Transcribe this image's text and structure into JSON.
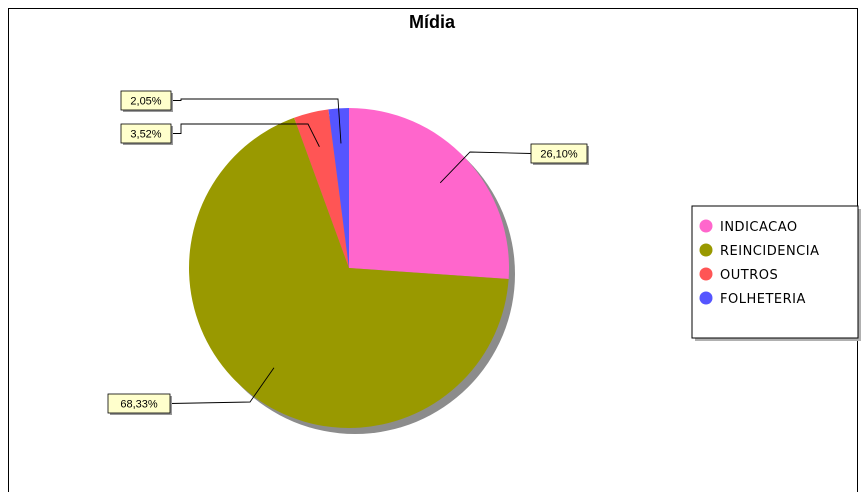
{
  "chart_data": {
    "type": "pie",
    "title": "Mídia",
    "slices": [
      {
        "name": "INDICACAO",
        "value": 26.1,
        "label": "26,10%",
        "color": "#ff66cc"
      },
      {
        "name": "REINCIDENCIA",
        "value": 68.33,
        "label": "68,33%",
        "color": "#999900"
      },
      {
        "name": "OUTROS",
        "value": 3.52,
        "label": "3,52%",
        "color": "#ff5555"
      },
      {
        "name": "FOLHETERIA",
        "value": 2.05,
        "label": "2,05%",
        "color": "#5555ff"
      }
    ],
    "legend_position": "right"
  }
}
